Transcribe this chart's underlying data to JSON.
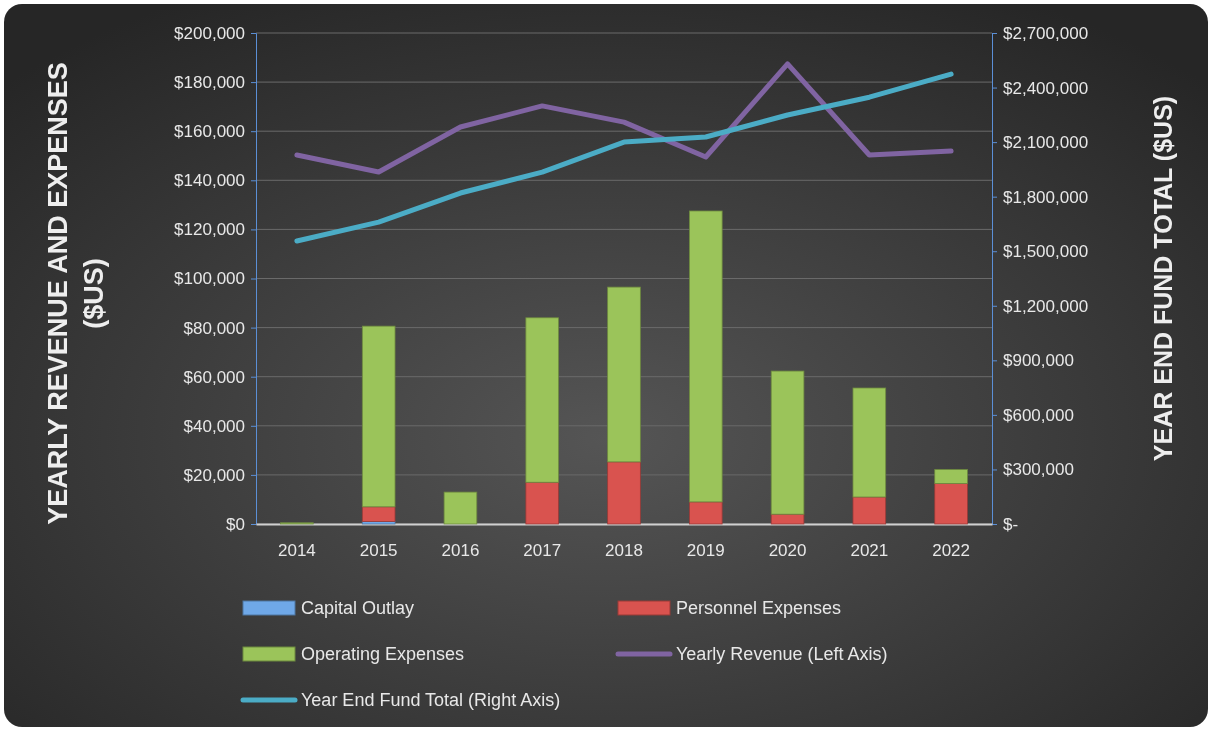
{
  "chart_data": {
    "type": "bar",
    "stacked": true,
    "ylabel": "YEARLY REVENUE AND EXPENSES ($US)",
    "y2label": "YEAR END FUND TOTAL ($US)",
    "categories": [
      "2014",
      "2015",
      "2016",
      "2017",
      "2018",
      "2019",
      "2020",
      "2021",
      "2022"
    ],
    "series": [
      {
        "name": "Capital Outlay",
        "color": "#6fa8e8",
        "values": [
          0,
          1000,
          0,
          0,
          0,
          0,
          0,
          0,
          0
        ]
      },
      {
        "name": "Personnel Expenses",
        "color": "#d9534f",
        "values": [
          0,
          6000,
          0,
          17000,
          25300,
          9000,
          4000,
          11000,
          16500
        ]
      },
      {
        "name": "Operating Expenses",
        "color": "#9bc45a",
        "values": [
          500,
          73600,
          13000,
          67000,
          71200,
          118500,
          58300,
          44400,
          5700
        ]
      },
      {
        "name": "Yearly Revenue (Left Axis)",
        "type": "line",
        "color": "#8064a2",
        "values": [
          150300,
          143400,
          161700,
          170300,
          163700,
          149500,
          187400,
          150300,
          151900
        ]
      },
      {
        "name": "Year End Fund Total (Right Axis)",
        "type": "line",
        "axis": "y2",
        "color": "#4bacc6",
        "values": [
          1556000,
          1660000,
          1820000,
          1935000,
          2100000,
          2128000,
          2249000,
          2347000,
          2474000
        ]
      }
    ],
    "ylim": [
      0,
      200000
    ],
    "yticks": [
      {
        "value": 0,
        "label": "$0"
      },
      {
        "value": 20000,
        "label": "$20,000"
      },
      {
        "value": 40000,
        "label": "$40,000"
      },
      {
        "value": 60000,
        "label": "$60,000"
      },
      {
        "value": 80000,
        "label": "$80,000"
      },
      {
        "value": 100000,
        "label": "$100,000"
      },
      {
        "value": 120000,
        "label": "$120,000"
      },
      {
        "value": 140000,
        "label": "$140,000"
      },
      {
        "value": 160000,
        "label": "$160,000"
      },
      {
        "value": 180000,
        "label": "$180,000"
      },
      {
        "value": 200000,
        "label": "$200,000"
      }
    ],
    "y2lim": [
      0,
      2700000
    ],
    "y2ticks": [
      {
        "value": 0,
        "label": "$-"
      },
      {
        "value": 300000,
        "label": "$300,000"
      },
      {
        "value": 600000,
        "label": "$600,000"
      },
      {
        "value": 900000,
        "label": "$900,000"
      },
      {
        "value": 1200000,
        "label": "$1,200,000"
      },
      {
        "value": 1500000,
        "label": "$1,500,000"
      },
      {
        "value": 1800000,
        "label": "$1,800,000"
      },
      {
        "value": 2100000,
        "label": "$2,100,000"
      },
      {
        "value": 2400000,
        "label": "$2,400,000"
      },
      {
        "value": 2700000,
        "label": "$2,700,000"
      }
    ],
    "grid": "y",
    "legend": "bottom"
  }
}
